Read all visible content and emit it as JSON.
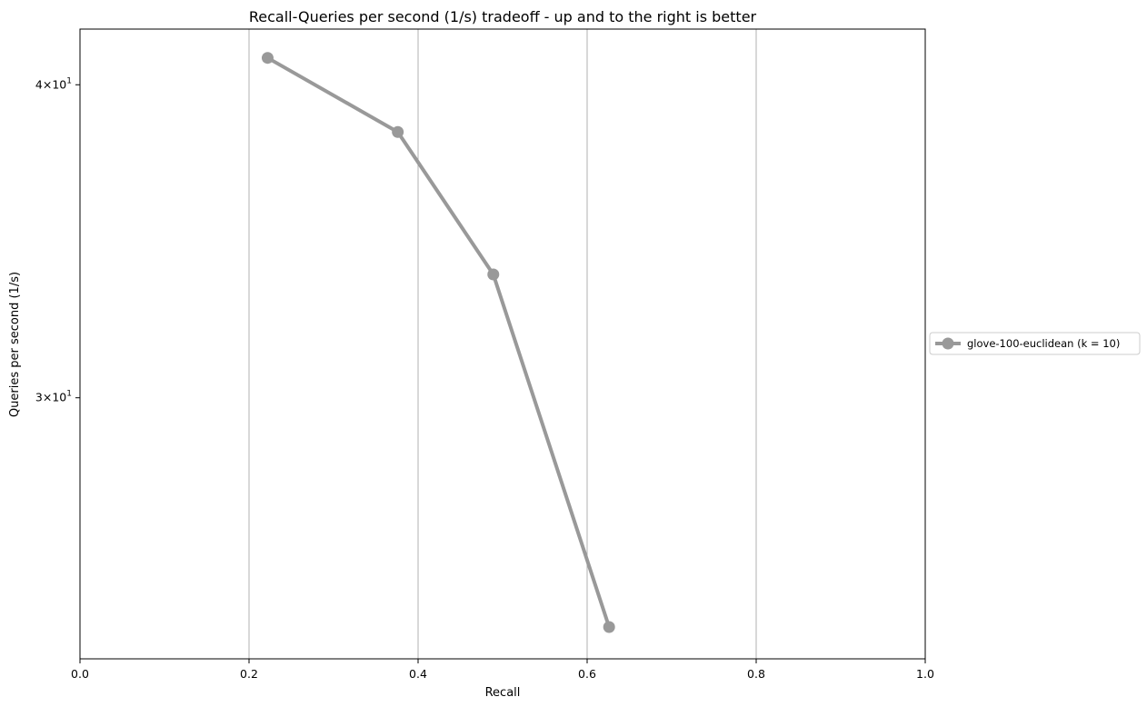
{
  "chart_data": {
    "type": "line",
    "title": "Recall-Queries per second (1/s) tradeoff - up and to the right is better",
    "xlabel": "Recall",
    "ylabel": "Queries per second (1/s)",
    "xlim": [
      0.0,
      1.0
    ],
    "ylim": [
      23.6,
      42.1
    ],
    "yscale": "log",
    "x_ticks": [
      {
        "value": 0.0,
        "label": "0.0"
      },
      {
        "value": 0.2,
        "label": "0.2"
      },
      {
        "value": 0.4,
        "label": "0.4"
      },
      {
        "value": 0.6,
        "label": "0.6"
      },
      {
        "value": 0.8,
        "label": "0.8"
      },
      {
        "value": 1.0,
        "label": "1.0"
      }
    ],
    "y_ticks": [
      {
        "value": 30,
        "base": "3×10",
        "exp": "1"
      },
      {
        "value": 40,
        "base": "4×10",
        "exp": "1"
      }
    ],
    "grid": "x-major",
    "legend_position": "outside-right",
    "series": [
      {
        "name": "glove-100-euclidean (k = 10)",
        "color": "#999999",
        "marker": "circle",
        "x": [
          0.222,
          0.376,
          0.489,
          0.626
        ],
        "y": [
          41.0,
          38.3,
          33.6,
          24.3
        ]
      }
    ]
  }
}
